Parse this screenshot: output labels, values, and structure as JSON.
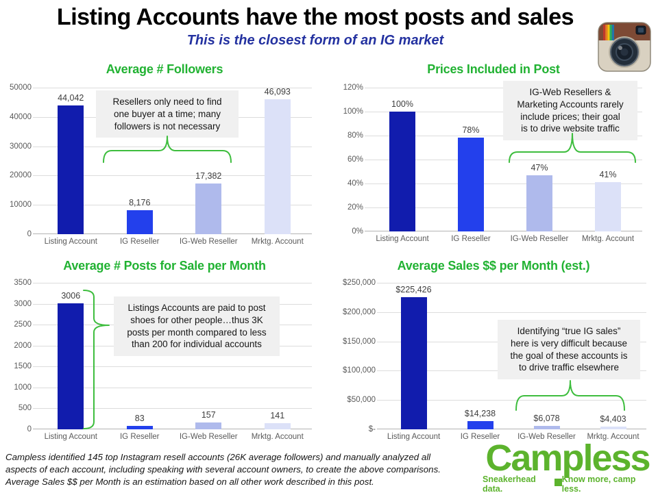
{
  "header": {
    "title": "Listing Accounts have the most posts and sales",
    "subtitle": "This is the closest form of an IG market"
  },
  "icons": {
    "top_right": "instagram-camera-icon"
  },
  "colors": {
    "bar_palette": [
      "#111cad",
      "#2340ec",
      "#afbaec",
      "#dce1f8"
    ],
    "chart_title_green": "#21b232",
    "brace_green": "#3dbd3d",
    "subtitle_blue": "#2331a0",
    "logo_green": "#5cb32d",
    "annotation_bg": "#f0f0f0",
    "axis_text": "#595959",
    "gridline": "#dcdcdc"
  },
  "chart_data": [
    {
      "type": "bar",
      "title": "Average # Followers",
      "categories": [
        "Listing Account",
        "IG Reseller",
        "IG-Web Reseller",
        "Mrktg. Account"
      ],
      "values": [
        44042,
        8176,
        17382,
        46093
      ],
      "value_labels": [
        "44,042",
        "8,176",
        "17,382",
        "46,093"
      ],
      "y_tick_labels": [
        "0",
        "10000",
        "20000",
        "30000",
        "40000",
        "50000"
      ],
      "ylim": [
        0,
        50000
      ],
      "grid": true,
      "legend": false,
      "annotation_lines": [
        "Resellers only need to find",
        "one buyer at a time; many",
        "followers is not necessary"
      ]
    },
    {
      "type": "bar",
      "title": "Prices Included in Post",
      "categories": [
        "Listing Account",
        "IG Reseller",
        "IG-Web Reseller",
        "Mrktg. Account"
      ],
      "values": [
        100,
        78,
        47,
        41
      ],
      "value_labels": [
        "100%",
        "78%",
        "47%",
        "41%"
      ],
      "y_tick_labels": [
        "0%",
        "20%",
        "40%",
        "60%",
        "80%",
        "100%",
        "120%"
      ],
      "ylim": [
        0,
        120
      ],
      "grid": true,
      "legend": false,
      "annotation_lines": [
        "IG-Web Resellers &",
        "Marketing Accounts rarely",
        "include prices; their goal",
        "is to drive website traffic"
      ]
    },
    {
      "type": "bar",
      "title": "Average # Posts for Sale per Month",
      "categories": [
        "Listing Account",
        "IG Reseller",
        "IG-Web Reseller",
        "Mrktg. Account"
      ],
      "values": [
        3006,
        83,
        157,
        141
      ],
      "value_labels": [
        "3006",
        "83",
        "157",
        "141"
      ],
      "y_tick_labels": [
        "0",
        "500",
        "1000",
        "1500",
        "2000",
        "2500",
        "3000",
        "3500"
      ],
      "ylim": [
        0,
        3500
      ],
      "grid": true,
      "legend": false,
      "annotation_lines": [
        "Listings Accounts are paid to post",
        "shoes for other people…thus 3K",
        "posts per month compared to less",
        "than 200 for individual accounts"
      ]
    },
    {
      "type": "bar",
      "title": "Average Sales $$ per Month (est.)",
      "categories": [
        "Listing Account",
        "IG Reseller",
        "IG-Web Reseller",
        "Mrktg. Account"
      ],
      "values": [
        225426,
        14238,
        6078,
        4403
      ],
      "value_labels": [
        "$225,426",
        "$14,238",
        "$6,078",
        "$4,403"
      ],
      "y_tick_labels": [
        "$-",
        "$50,000",
        "$100,000",
        "$150,000",
        "$200,000",
        "$250,000"
      ],
      "ylim": [
        0,
        250000
      ],
      "grid": true,
      "legend": false,
      "annotation_lines": [
        "Identifying “true IG sales”",
        "here is very difficult because",
        "the goal of these accounts is",
        "to drive traffic elsewhere"
      ]
    }
  ],
  "footer": {
    "note": "Campless identified 145 top Instagram resell accounts (26K average followers) and manually analyzed all\naspects of each account, including speaking with several account owners, to create the above comparisons.\nAverage Sales $$ per Month is an estimation based on all other work described in this post.",
    "logo": {
      "name": "Campless",
      "tagline_left": "Sneakerhead data.",
      "tagline_right": "Know more, camp less."
    }
  }
}
